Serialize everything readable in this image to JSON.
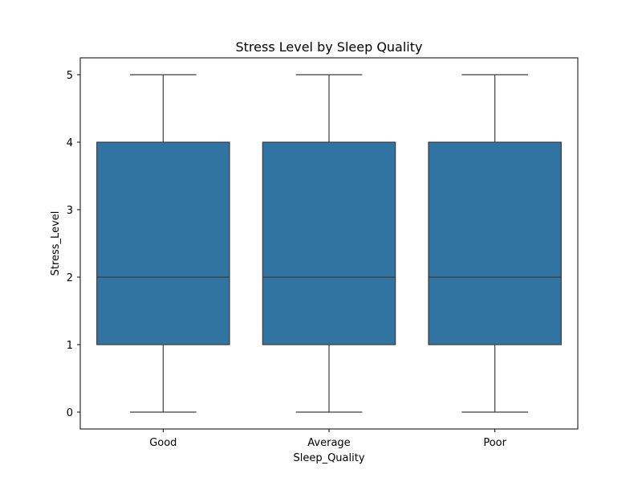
{
  "chart_data": {
    "type": "box",
    "title": "Stress Level by Sleep Quality",
    "xlabel": "Sleep_Quality",
    "ylabel": "Stress_Level",
    "categories": [
      "Good",
      "Average",
      "Poor"
    ],
    "boxes": [
      {
        "category": "Good",
        "whisker_low": 0,
        "q1": 1,
        "median": 2,
        "q3": 4,
        "whisker_high": 5
      },
      {
        "category": "Average",
        "whisker_low": 0,
        "q1": 1,
        "median": 2,
        "q3": 4,
        "whisker_high": 5
      },
      {
        "category": "Poor",
        "whisker_low": 0,
        "q1": 1,
        "median": 2,
        "q3": 4,
        "whisker_high": 5
      }
    ],
    "yticks": [
      0,
      1,
      2,
      3,
      4,
      5
    ],
    "ylim": [
      -0.25,
      5.25
    ],
    "grid": false,
    "colors": {
      "box_fill": "#3274a1",
      "line": "#3d3d3d"
    }
  }
}
